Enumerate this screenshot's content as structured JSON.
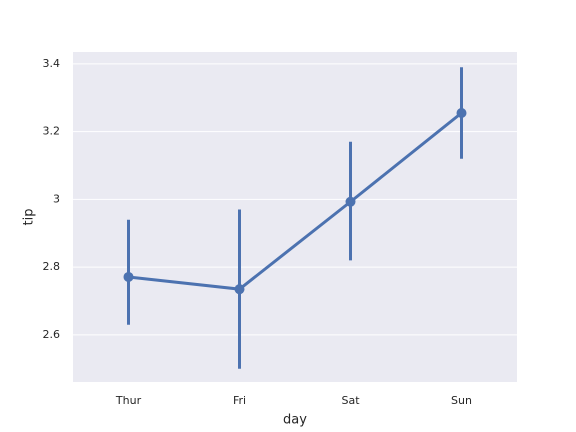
{
  "chart_data": {
    "type": "pointplot",
    "x_label": "day",
    "y_label": "tip",
    "categories": [
      "Thur",
      "Fri",
      "Sat",
      "Sun"
    ],
    "values": [
      2.771,
      2.735,
      2.993,
      3.255
    ],
    "ci_low": [
      2.63,
      2.5,
      2.82,
      3.12
    ],
    "ci_high": [
      2.94,
      2.97,
      3.17,
      3.39
    ],
    "color": "#4c72b0",
    "ylim": [
      2.461,
      3.435
    ],
    "yticks": [
      2.6,
      2.8,
      3.0,
      3.2,
      3.4
    ],
    "grid": true
  }
}
